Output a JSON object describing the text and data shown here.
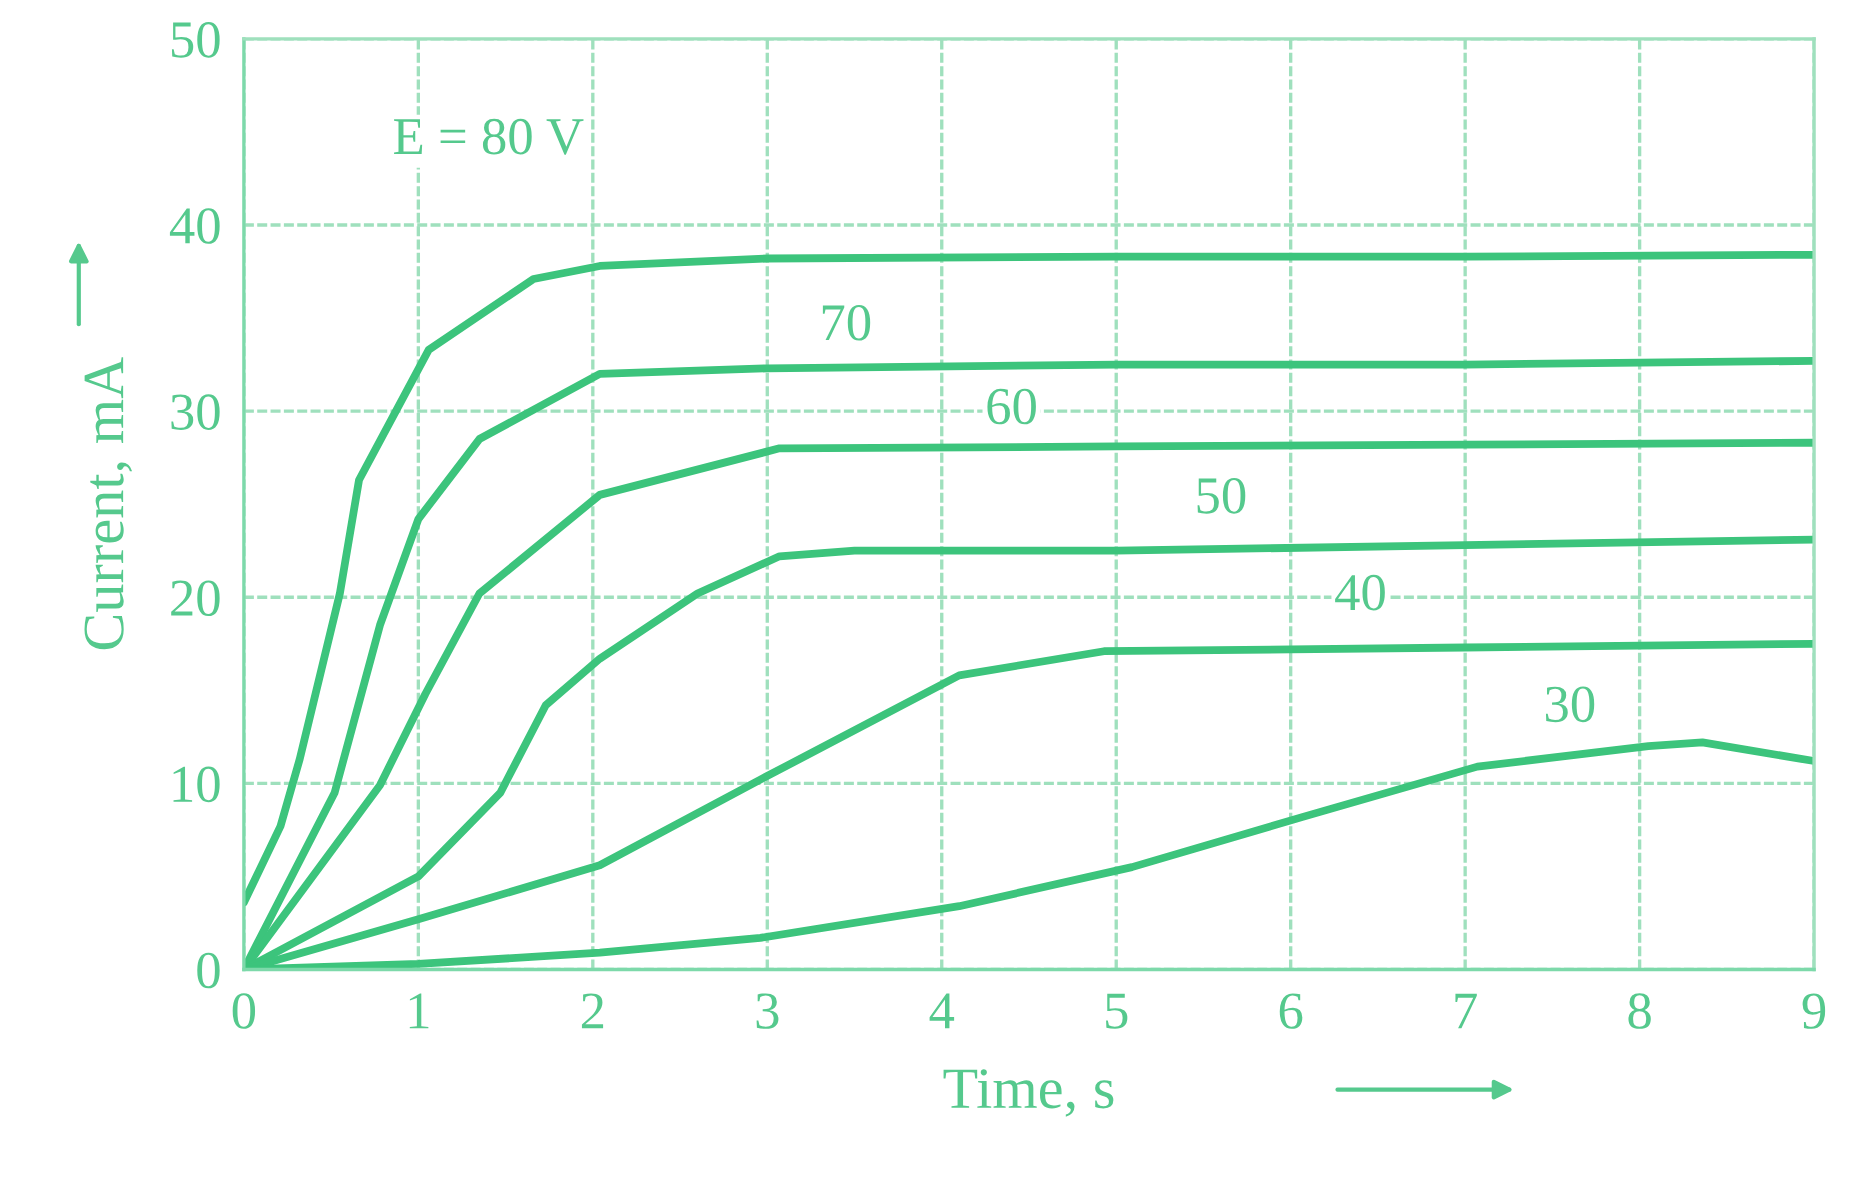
{
  "chart_data": {
    "type": "line",
    "xlabel": "Time, s",
    "ylabel": "Current, mA",
    "xlim": [
      0,
      9
    ],
    "ylim": [
      0,
      50
    ],
    "xticks": [
      0,
      1,
      2,
      3,
      4,
      5,
      6,
      7,
      8,
      9
    ],
    "yticks": [
      0,
      10,
      20,
      30,
      40,
      50
    ],
    "grid": true,
    "legend": false,
    "marker": "none",
    "line_style": "solid",
    "series": [
      {
        "name": "E = 80 V",
        "color": "#3cc47c",
        "x": [
          0,
          0.21,
          0.32,
          0.55,
          0.66,
          1.06,
          1.66,
          2.04,
          3,
          5,
          7,
          9
        ],
        "values": [
          3.6,
          7.7,
          11.3,
          20.2,
          26.3,
          33.3,
          37.1,
          37.8,
          38.2,
          38.3,
          38.3,
          38.4
        ]
      },
      {
        "name": "70",
        "color": "#3cc47c",
        "x": [
          0,
          0.52,
          0.78,
          1.0,
          1.35,
          2.04,
          3,
          5,
          7,
          9
        ],
        "values": [
          0,
          9.5,
          18.5,
          24.2,
          28.5,
          32.0,
          32.3,
          32.5,
          32.5,
          32.7
        ]
      },
      {
        "name": "60",
        "color": "#3cc47c",
        "x": [
          0,
          0.78,
          1.04,
          1.35,
          2.04,
          3.07,
          5,
          7,
          9
        ],
        "values": [
          0,
          9.9,
          14.8,
          20.2,
          25.5,
          28.0,
          28.1,
          28.2,
          28.3
        ]
      },
      {
        "name": "50",
        "color": "#3cc47c",
        "x": [
          0,
          1.0,
          1.47,
          1.73,
          2.04,
          2.6,
          3.07,
          3.5,
          5,
          7,
          9
        ],
        "values": [
          0,
          5.0,
          9.5,
          14.2,
          16.7,
          20.2,
          22.2,
          22.5,
          22.5,
          22.8,
          23.1
        ]
      },
      {
        "name": "40",
        "color": "#3cc47c",
        "x": [
          0,
          1.0,
          2.04,
          2.96,
          4.1,
          4.93,
          6,
          7,
          9
        ],
        "values": [
          0,
          2.7,
          5.6,
          10.2,
          15.8,
          17.1,
          17.2,
          17.3,
          17.5
        ]
      },
      {
        "name": "30",
        "color": "#3cc47c",
        "x": [
          0,
          1.0,
          2.04,
          2.96,
          4.1,
          5.09,
          6.07,
          7.07,
          8.05,
          8.36,
          9
        ],
        "values": [
          0,
          0.3,
          0.9,
          1.7,
          3.4,
          5.5,
          8.2,
          10.9,
          12.0,
          12.2,
          11.2
        ]
      }
    ]
  }
}
